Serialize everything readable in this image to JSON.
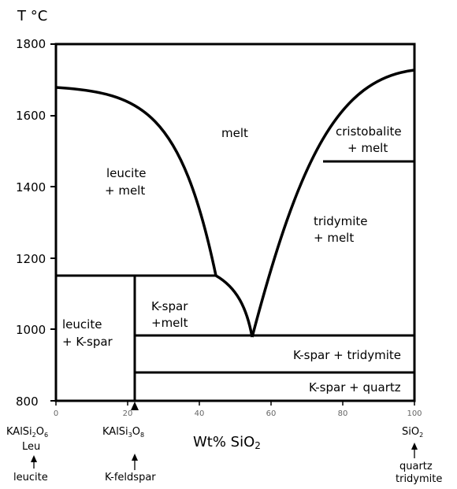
{
  "y_axis": {
    "label": "T °C",
    "ticks": [
      "1800",
      "1600",
      "1400",
      "1200",
      "1000",
      "800"
    ]
  },
  "x_axis": {
    "label": "Wt% SiO",
    "label_sub": "2",
    "ticks": [
      "0",
      "20",
      "40",
      "60",
      "80",
      "100"
    ]
  },
  "fields": {
    "melt": "melt",
    "leucite_melt": [
      "leucite",
      "+ melt"
    ],
    "cristobalite_melt": [
      "cristobalite",
      "+ melt"
    ],
    "tridymite_melt": [
      "tridymite",
      "+ melt"
    ],
    "kspar_melt": [
      "K-spar",
      "+melt"
    ],
    "leucite_kspar": [
      "leucite",
      "+ K-spar"
    ],
    "kspar_tridymite": "K-spar + tridymite",
    "kspar_quartz": "K-spar + quartz"
  },
  "compositions": {
    "left": {
      "formula": "KAlSi",
      "sub1": "2",
      "o": "O",
      "sub2": "6",
      "abbr": "Leu",
      "mineral": "leucite"
    },
    "middle": {
      "formula": "KAlSi",
      "sub1": "3",
      "o": "O",
      "sub2": "8",
      "mineral": "K-feldspar"
    },
    "right": {
      "formula": "SiO",
      "sub1": "2",
      "mineral_1": "quartz",
      "mineral_2": "tridymite"
    }
  }
}
